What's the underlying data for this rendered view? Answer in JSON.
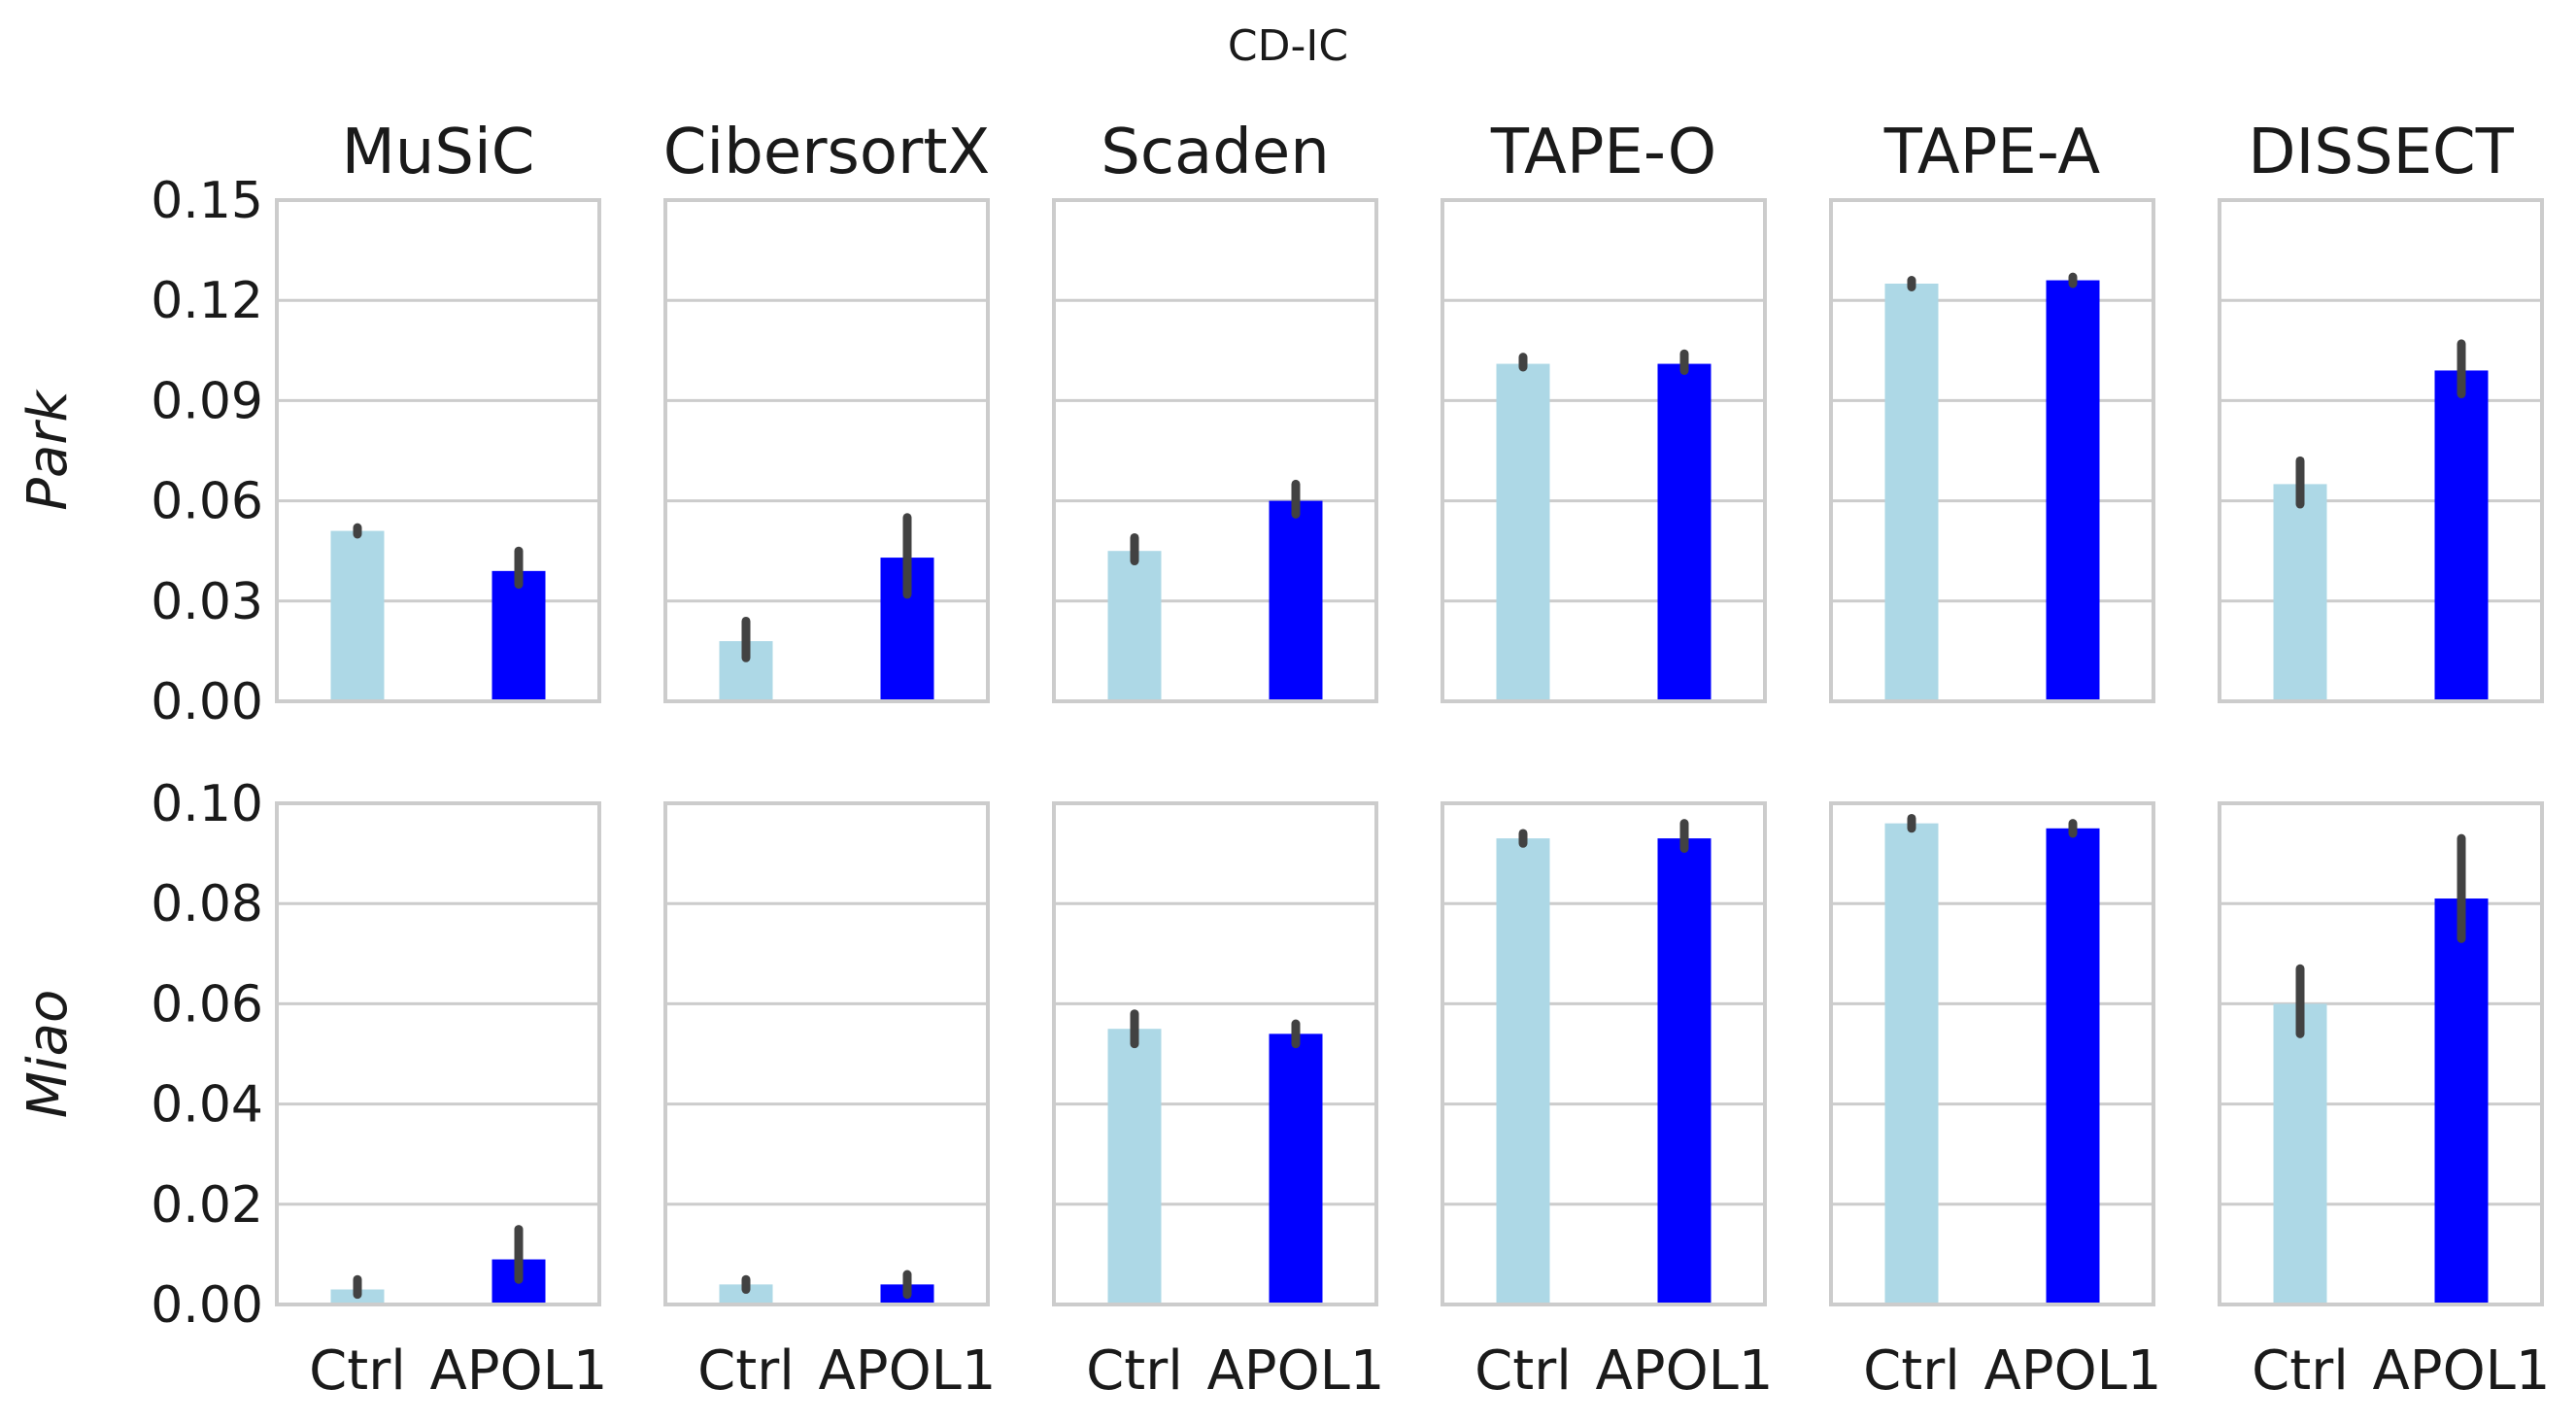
{
  "figure_title": "CD-IC",
  "colors": {
    "ctrl": "#add8e6",
    "apol1": "#0000ff",
    "errorbar": "#424242",
    "grid": "#cccccc",
    "axes": "#cccccc"
  },
  "chart_data": {
    "type": "bar",
    "title": "CD-IC",
    "categories": [
      "Ctrl",
      "APOL1"
    ],
    "methods": [
      "MuSiC",
      "CibersortX",
      "Scaden",
      "TAPE-O",
      "TAPE-A",
      "DISSECT"
    ],
    "rows": [
      {
        "dataset": "Park",
        "ylim": [
          0,
          0.15
        ],
        "yticks": [
          0.0,
          0.03,
          0.06,
          0.09,
          0.12,
          0.15
        ],
        "ytick_labels": [
          "0.00",
          "0.03",
          "0.06",
          "0.09",
          "0.12",
          "0.15"
        ],
        "panels": [
          {
            "method": "MuSiC",
            "values": [
              0.051,
              0.039
            ],
            "ci": [
              [
                0.05,
                0.052
              ],
              [
                0.035,
                0.045
              ]
            ]
          },
          {
            "method": "CibersortX",
            "values": [
              0.018,
              0.043
            ],
            "ci": [
              [
                0.013,
                0.024
              ],
              [
                0.032,
                0.055
              ]
            ]
          },
          {
            "method": "Scaden",
            "values": [
              0.045,
              0.06
            ],
            "ci": [
              [
                0.042,
                0.049
              ],
              [
                0.056,
                0.065
              ]
            ]
          },
          {
            "method": "TAPE-O",
            "values": [
              0.101,
              0.101
            ],
            "ci": [
              [
                0.1,
                0.103
              ],
              [
                0.099,
                0.104
              ]
            ]
          },
          {
            "method": "TAPE-A",
            "values": [
              0.125,
              0.126
            ],
            "ci": [
              [
                0.124,
                0.126
              ],
              [
                0.125,
                0.127
              ]
            ]
          },
          {
            "method": "DISSECT",
            "values": [
              0.065,
              0.099
            ],
            "ci": [
              [
                0.059,
                0.072
              ],
              [
                0.092,
                0.107
              ]
            ]
          }
        ]
      },
      {
        "dataset": "Miao",
        "ylim": [
          0,
          0.1
        ],
        "yticks": [
          0.0,
          0.02,
          0.04,
          0.06,
          0.08,
          0.1
        ],
        "ytick_labels": [
          "0.00",
          "0.02",
          "0.04",
          "0.06",
          "0.08",
          "0.10"
        ],
        "panels": [
          {
            "method": "MuSiC",
            "values": [
              0.003,
              0.009
            ],
            "ci": [
              [
                0.002,
                0.005
              ],
              [
                0.005,
                0.015
              ]
            ]
          },
          {
            "method": "CibersortX",
            "values": [
              0.004,
              0.004
            ],
            "ci": [
              [
                0.003,
                0.005
              ],
              [
                0.002,
                0.006
              ]
            ]
          },
          {
            "method": "Scaden",
            "values": [
              0.055,
              0.054
            ],
            "ci": [
              [
                0.052,
                0.058
              ],
              [
                0.052,
                0.056
              ]
            ]
          },
          {
            "method": "TAPE-O",
            "values": [
              0.093,
              0.093
            ],
            "ci": [
              [
                0.092,
                0.094
              ],
              [
                0.091,
                0.096
              ]
            ]
          },
          {
            "method": "TAPE-A",
            "values": [
              0.096,
              0.095
            ],
            "ci": [
              [
                0.095,
                0.097
              ],
              [
                0.094,
                0.096
              ]
            ]
          },
          {
            "method": "DISSECT",
            "values": [
              0.06,
              0.081
            ],
            "ci": [
              [
                0.054,
                0.067
              ],
              [
                0.073,
                0.093
              ]
            ]
          }
        ]
      }
    ],
    "grid": "horizontal",
    "legend": "none"
  }
}
